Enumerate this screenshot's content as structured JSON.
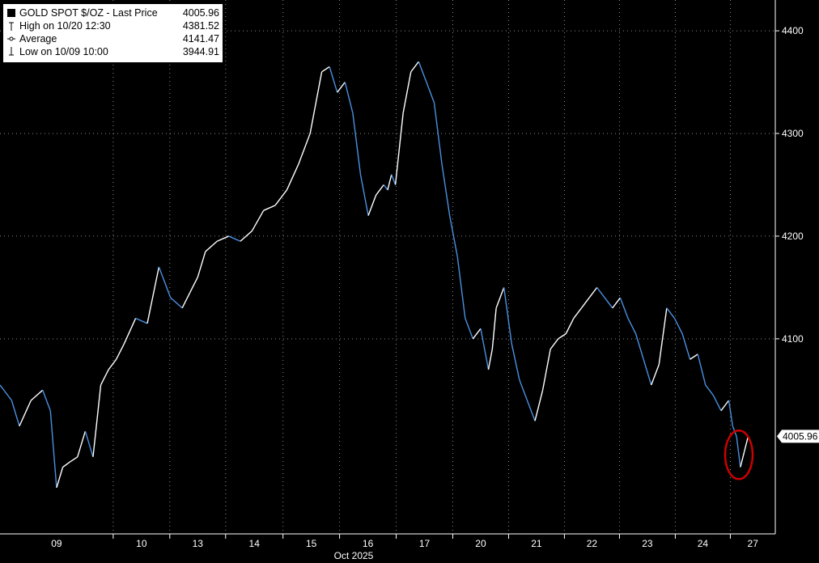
{
  "legend": {
    "title": "GOLD SPOT $/OZ - Last Price",
    "last_price": "4005.96",
    "high_label": "High on 10/20 12:30",
    "high_value": "4381.52",
    "avg_label": "Average",
    "avg_value": "4141.47",
    "low_label": "Low on 10/09 10:00",
    "low_value": "3944.91"
  },
  "colors": {
    "background": "#000000",
    "gridline": "#8a8a8a",
    "price_line": "#ffffff",
    "down_line": "#4a90e2",
    "annotation": "#cc0000",
    "last_price_tag": "#ffffff"
  },
  "chart_data": {
    "type": "line",
    "title": "GOLD SPOT $/OZ",
    "x_tick_labels": [
      "09",
      "10",
      "13",
      "14",
      "15",
      "16",
      "17",
      "20",
      "21",
      "22",
      "23",
      "24",
      "27"
    ],
    "x_month_label": "Oct 2025",
    "y_ticks": [
      4100,
      4200,
      4300,
      4400
    ],
    "ylim": [
      3910,
      4430
    ],
    "xlim": [
      0,
      100
    ],
    "last_price_tag": "4005.96",
    "series": [
      {
        "name": "GOLD SPOT $/OZ - Last Price",
        "x": [
          0,
          1.5,
          2.5,
          4,
          5.5,
          6.5,
          7.3,
          8.1,
          9,
          10,
          11,
          12,
          13,
          14,
          15,
          16,
          17.5,
          19,
          20.5,
          22,
          23.5,
          24.5,
          25.5,
          26.5,
          28,
          29.5,
          31,
          32.5,
          34,
          35.5,
          37,
          38.5,
          40,
          41.5,
          42.5,
          43.5,
          44.5,
          45.5,
          46.5,
          47.5,
          48.5,
          49.5,
          50,
          50.5,
          51,
          52,
          53,
          54,
          55,
          56,
          57,
          58,
          59,
          60,
          60.5,
          61,
          62,
          63,
          63.5,
          64,
          65,
          66,
          67,
          68,
          69,
          70,
          71,
          72,
          73,
          74,
          75,
          76,
          77,
          78,
          79,
          80,
          81,
          82,
          83,
          84,
          85,
          86,
          87,
          88,
          89,
          90,
          91,
          92,
          93,
          94,
          94.5,
          95,
          95.5,
          96,
          96.5
        ],
        "values": [
          4055,
          4040,
          4015,
          4040,
          4050,
          4030,
          3955,
          3975,
          3980,
          3985,
          4010,
          3985,
          4055,
          4070,
          4080,
          4095,
          4120,
          4115,
          4170,
          4140,
          4130,
          4145,
          4160,
          4185,
          4195,
          4200,
          4195,
          4205,
          4225,
          4230,
          4245,
          4270,
          4300,
          4360,
          4365,
          4340,
          4350,
          4320,
          4260,
          4220,
          4240,
          4250,
          4245,
          4260,
          4250,
          4320,
          4360,
          4370,
          4350,
          4330,
          4270,
          4220,
          4180,
          4120,
          4110,
          4100,
          4110,
          4070,
          4090,
          4130,
          4150,
          4095,
          4060,
          4040,
          4020,
          4050,
          4090,
          4100,
          4105,
          4120,
          4130,
          4140,
          4150,
          4140,
          4130,
          4140,
          4120,
          4105,
          4080,
          4055,
          4075,
          4130,
          4120,
          4105,
          4080,
          4085,
          4055,
          4045,
          4030,
          4040,
          4015,
          4005,
          3975,
          3990,
          4005
        ]
      }
    ],
    "annotation": "red-circle-last-price-low"
  }
}
